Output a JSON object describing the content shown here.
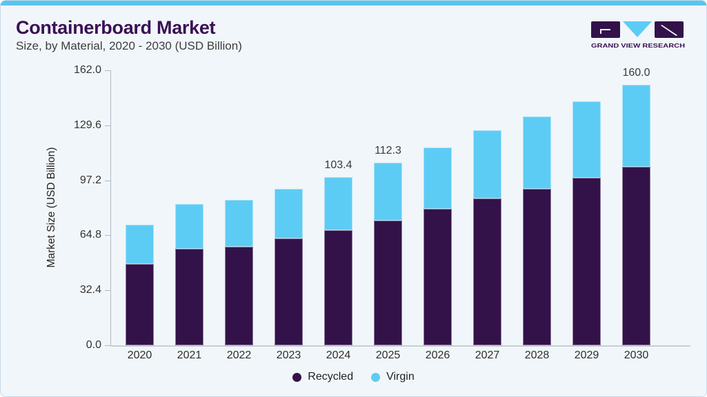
{
  "header": {
    "title": "Containerboard Market",
    "subtitle": "Size, by Material, 2020 - 2030 (USD Billion)",
    "logo_text": "GRAND VIEW RESEARCH"
  },
  "chart_data": {
    "type": "bar",
    "stacked": true,
    "title": "Containerboard Market Size, by Material, 2020 - 2030 (USD Billion)",
    "xlabel": "",
    "ylabel": "Market Size (USD Billion)",
    "categories": [
      "2020",
      "2021",
      "2022",
      "2023",
      "2024",
      "2025",
      "2026",
      "2027",
      "2028",
      "2029",
      "2030"
    ],
    "series": [
      {
        "name": "Recycled",
        "color": "#33124a",
        "values": [
          49.9,
          59.2,
          60.5,
          65.6,
          70.6,
          76.6,
          83.8,
          90.1,
          96.0,
          102.8,
          109.6
        ]
      },
      {
        "name": "Virgin",
        "color": "#5dccf4",
        "values": [
          24.1,
          27.5,
          28.8,
          30.4,
          32.8,
          35.7,
          37.6,
          41.9,
          44.4,
          46.9,
          50.4
        ]
      }
    ],
    "totals": [
      74.0,
      86.7,
      89.3,
      96.0,
      103.4,
      112.3,
      121.4,
      132.0,
      140.4,
      149.7,
      160.0
    ],
    "bar_labels": {
      "2024": "103.4",
      "2025": "112.3",
      "2030": "160.0"
    },
    "yticks": [
      0.0,
      32.4,
      64.8,
      97.2,
      129.6,
      162.0
    ],
    "ytick_labels": [
      "0.0",
      "32.4",
      "64.8",
      "97.2",
      "129.6",
      "162.0"
    ],
    "ylim": [
      0,
      162
    ],
    "grid": false,
    "legend": [
      "Recycled",
      "Virgin"
    ],
    "legend_position": "bottom-center"
  },
  "colors": {
    "card_background": "#f1f6fa",
    "top_accent": "#57c5ef",
    "title_purple": "#3a1053",
    "recycled": "#33124a",
    "virgin": "#5dccf4",
    "axis_gray": "#b0b8bf"
  }
}
